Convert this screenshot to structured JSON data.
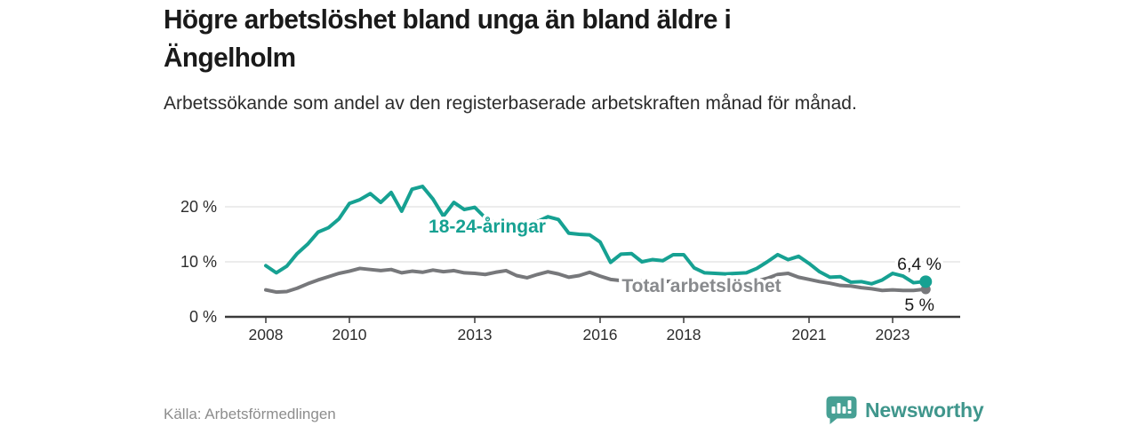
{
  "header": {
    "title": "Högre arbetslöshet bland unga än bland äldre i Ängelholm",
    "subtitle": "Arbetssökande som andel av den registerbaserade arbetskraften månad för månad."
  },
  "footer": {
    "source": "Källa: Arbetsförmedlingen",
    "brand": "Newsworthy",
    "brand_color": "#3f968c"
  },
  "chart_data": {
    "type": "line",
    "title": "Högre arbetslöshet bland unga än bland äldre i Ängelholm",
    "subtitle": "Arbetssökande som andel av den registerbaserade arbetskraften månad för månad",
    "xlabel": "",
    "ylabel": "",
    "ylim": [
      0,
      25
    ],
    "xlim": [
      2007.8,
      2024.2
    ],
    "grid": "horizontal",
    "legend": "inline-labels",
    "x": [
      2008,
      2008.25,
      2008.5,
      2008.75,
      2009,
      2009.25,
      2009.5,
      2009.75,
      2010,
      2010.25,
      2010.5,
      2010.75,
      2011,
      2011.25,
      2011.5,
      2011.75,
      2012,
      2012.25,
      2012.5,
      2012.75,
      2013,
      2013.25,
      2013.5,
      2013.75,
      2014,
      2014.25,
      2014.5,
      2014.75,
      2015,
      2015.25,
      2015.5,
      2015.75,
      2016,
      2016.25,
      2016.5,
      2016.75,
      2017,
      2017.25,
      2017.5,
      2017.75,
      2018,
      2018.25,
      2018.5,
      2018.75,
      2019,
      2019.25,
      2019.5,
      2019.75,
      2020,
      2020.25,
      2020.5,
      2020.75,
      2021,
      2021.25,
      2021.5,
      2021.75,
      2022,
      2022.25,
      2022.5,
      2022.75,
      2023,
      2023.25,
      2023.5,
      2023.75
    ],
    "series": [
      {
        "name": "18-24-åringar",
        "color": "#16a192",
        "end_label": "6,4 %",
        "last_value": 6.4,
        "values": [
          9.3,
          8.0,
          9.2,
          11.5,
          13.2,
          15.4,
          16.2,
          17.8,
          20.6,
          21.3,
          22.4,
          20.8,
          22.6,
          19.2,
          23.2,
          23.7,
          21.4,
          18.3,
          20.8,
          19.5,
          19.9,
          18.0,
          17.2,
          17.4,
          17.0,
          16.6,
          17.3,
          18.2,
          17.7,
          15.2,
          15.0,
          14.9,
          13.6,
          9.9,
          11.4,
          11.5,
          10.0,
          10.4,
          10.2,
          11.3,
          11.3,
          8.9,
          8.0,
          7.9,
          7.8,
          7.9,
          8.0,
          8.8,
          10.0,
          11.3,
          10.4,
          11.0,
          9.7,
          8.2,
          7.2,
          7.3,
          6.3,
          6.4,
          6.0,
          6.7,
          7.9,
          7.4,
          6.2,
          6.4
        ]
      },
      {
        "name": "Total arbetslöshet",
        "color": "#77787b",
        "label_color": "#888a8d",
        "end_label": "5 %",
        "last_value": 5.0,
        "values": [
          4.9,
          4.5,
          4.6,
          5.2,
          6.0,
          6.7,
          7.3,
          7.9,
          8.3,
          8.8,
          8.6,
          8.4,
          8.6,
          8.0,
          8.3,
          8.1,
          8.5,
          8.2,
          8.4,
          8.0,
          7.9,
          7.7,
          8.1,
          8.4,
          7.5,
          7.1,
          7.7,
          8.2,
          7.8,
          7.2,
          7.5,
          8.1,
          7.4,
          6.8,
          6.6,
          6.7,
          6.5,
          6.4,
          6.4,
          6.5,
          6.3,
          6.1,
          6.0,
          6.1,
          6.0,
          5.9,
          6.1,
          6.5,
          7.0,
          7.7,
          7.9,
          7.2,
          6.8,
          6.4,
          6.1,
          5.7,
          5.6,
          5.3,
          5.1,
          4.8,
          4.9,
          4.8,
          4.8,
          5.0
        ]
      }
    ],
    "xticks": [
      {
        "year": 2008,
        "label": "2008"
      },
      {
        "year": 2010,
        "label": "2010"
      },
      {
        "year": 2013,
        "label": "2013"
      },
      {
        "year": 2016,
        "label": "2016"
      },
      {
        "year": 2018,
        "label": "2018"
      },
      {
        "year": 2021,
        "label": "2021"
      },
      {
        "year": 2023,
        "label": "2023"
      }
    ],
    "yticks": [
      {
        "value": 0,
        "label": "0 %"
      },
      {
        "value": 10,
        "label": "10 %"
      },
      {
        "value": 20,
        "label": "20 %"
      }
    ]
  }
}
